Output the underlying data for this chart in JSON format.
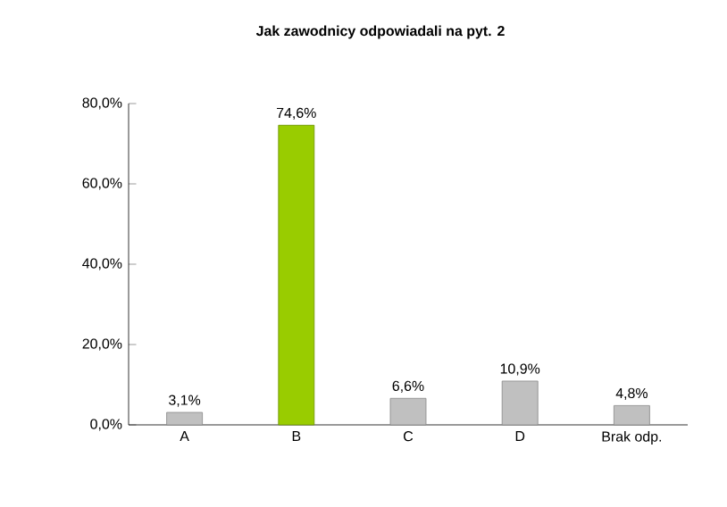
{
  "chart_data": {
    "type": "bar",
    "title": "Jak zawodnicy odpowiadali na pyt. 2",
    "categories": [
      "A",
      "B",
      "C",
      "D",
      "Brak odp."
    ],
    "values": [
      3.1,
      74.6,
      6.6,
      10.9,
      4.8
    ],
    "colors": [
      "#c0c0c0",
      "#99cc00",
      "#c0c0c0",
      "#c0c0c0",
      "#c0c0c0"
    ],
    "value_labels": [
      "3,1%",
      "74,6%",
      "6,6%",
      "10,9%",
      "4,8%"
    ],
    "ylim": [
      0,
      80
    ],
    "yticks": [
      {
        "value": 0,
        "label": "0,0%"
      },
      {
        "value": 20,
        "label": "20,0%"
      },
      {
        "value": 40,
        "label": "40,0%"
      },
      {
        "value": 60,
        "label": "60,0%"
      },
      {
        "value": 80,
        "label": "80,0%"
      }
    ],
    "grid": false
  }
}
